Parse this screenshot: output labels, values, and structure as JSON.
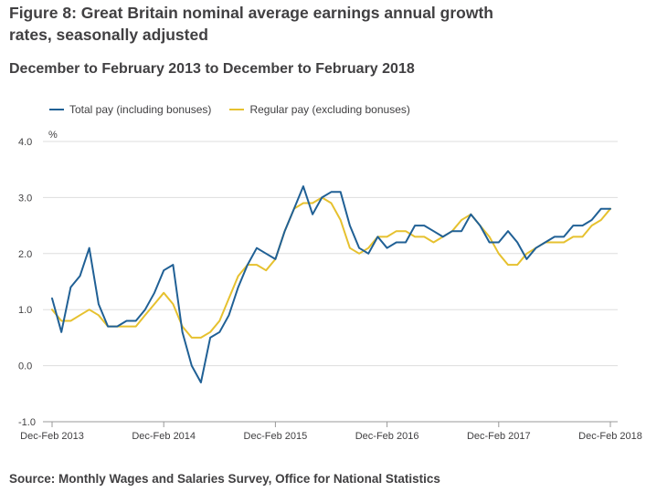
{
  "title": "Figure 8: Great Britain nominal average earnings annual growth rates, seasonally adjusted",
  "subtitle": "December to February 2013 to December to February 2018",
  "source": "Source: Monthly Wages and Salaries Survey, Office for National Statistics",
  "colors": {
    "total": "#206095",
    "regular": "#e6c12f",
    "grid": "#dddddd",
    "axis": "#999999"
  },
  "chart_data": {
    "type": "line",
    "title": "",
    "ylabel": "%",
    "xlabel": "",
    "ylim": [
      -1.0,
      4.0
    ],
    "yticks": [
      "4.0",
      "3.0",
      "2.0",
      "1.0",
      "0.0",
      "-1.0"
    ],
    "ytick_values": [
      4,
      3,
      2,
      1,
      0,
      -1
    ],
    "xtick_labels": [
      "Dec-Feb 2013",
      "Dec-Feb 2014",
      "Dec-Feb 2015",
      "Dec-Feb 2016",
      "Dec-Feb 2017",
      "Dec-Feb 2018"
    ],
    "xtick_index": [
      0,
      12,
      24,
      36,
      48,
      60
    ],
    "grid": true,
    "legend_position": "top-left",
    "series": [
      {
        "name": "Total pay (including bonuses)",
        "values": [
          1.2,
          0.6,
          1.4,
          1.6,
          2.1,
          1.1,
          0.7,
          0.7,
          0.8,
          0.8,
          1.0,
          1.3,
          1.7,
          1.8,
          0.6,
          0.0,
          -0.3,
          0.5,
          0.6,
          0.9,
          1.4,
          1.8,
          2.1,
          2.0,
          1.9,
          2.4,
          2.8,
          3.2,
          2.7,
          3.0,
          3.1,
          3.1,
          2.5,
          2.1,
          2.0,
          2.3,
          2.1,
          2.2,
          2.2,
          2.5,
          2.5,
          2.4,
          2.3,
          2.4,
          2.4,
          2.7,
          2.5,
          2.2,
          2.2,
          2.4,
          2.2,
          1.9,
          2.1,
          2.2,
          2.3,
          2.3,
          2.5,
          2.5,
          2.6,
          2.8,
          2.8
        ]
      },
      {
        "name": "Regular pay (excluding bonuses)",
        "values": [
          1.0,
          0.8,
          0.8,
          0.9,
          1.0,
          0.9,
          0.7,
          0.7,
          0.7,
          0.7,
          0.9,
          1.1,
          1.3,
          1.1,
          0.7,
          0.5,
          0.5,
          0.6,
          0.8,
          1.2,
          1.6,
          1.8,
          1.8,
          1.7,
          1.9,
          2.4,
          2.8,
          2.9,
          2.9,
          3.0,
          2.9,
          2.6,
          2.1,
          2.0,
          2.1,
          2.3,
          2.3,
          2.4,
          2.4,
          2.3,
          2.3,
          2.2,
          2.3,
          2.4,
          2.6,
          2.7,
          2.5,
          2.3,
          2.0,
          1.8,
          1.8,
          2.0,
          2.1,
          2.2,
          2.2,
          2.2,
          2.3,
          2.3,
          2.5,
          2.6,
          2.8
        ]
      }
    ]
  }
}
